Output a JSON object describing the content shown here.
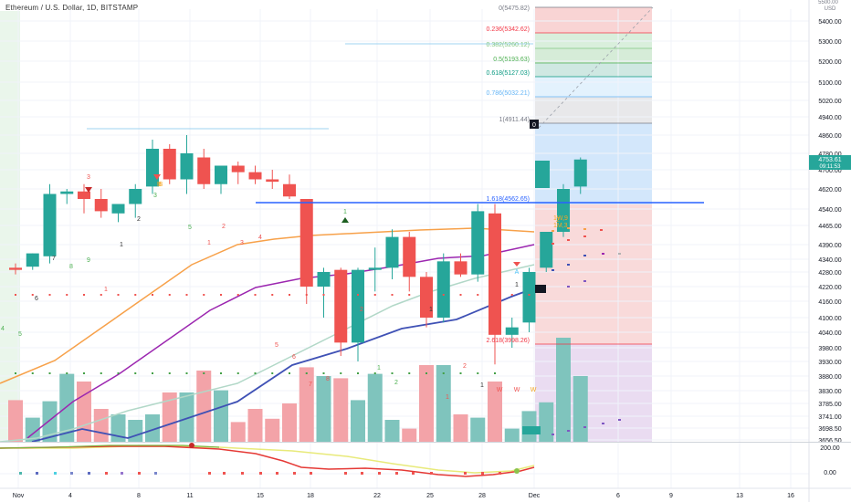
{
  "header": {
    "title": "Ethereum / U.S. Dollar, 1D, BITSTAMP"
  },
  "price_axis": {
    "currency": "USD",
    "top_label": "5500.00",
    "last_price": "4753.61",
    "countdown": "09:11:53"
  },
  "chart_data": [
    {
      "type": "candlestick",
      "title": "Ethereum / U.S. Dollar, 1D, BITSTAMP",
      "x_ticks": [
        "Nov",
        "4",
        "8",
        "11",
        "15",
        "18",
        "22",
        "25",
        "28",
        "Dec",
        "6",
        "9",
        "13",
        "16"
      ],
      "y_ticks": [
        5400,
        5300,
        5200,
        5100,
        5020,
        4940,
        4860,
        4780,
        4700,
        4620,
        4540,
        4465,
        4390,
        4340,
        4280,
        4220,
        4160,
        4100,
        4040,
        3980,
        3930,
        3880,
        3830,
        3785,
        3741,
        3698.5,
        3656.5
      ],
      "ylim": [
        3656.5,
        5510
      ],
      "candles": [
        {
          "o": 4300,
          "h": 4320,
          "l": 4270,
          "c": 4290
        },
        {
          "o": 4305,
          "h": 4360,
          "l": 4290,
          "c": 4360
        },
        {
          "o": 4350,
          "h": 4640,
          "l": 4320,
          "c": 4600
        },
        {
          "o": 4600,
          "h": 4620,
          "l": 4560,
          "c": 4610
        },
        {
          "o": 4610,
          "h": 4640,
          "l": 4520,
          "c": 4580
        },
        {
          "o": 4580,
          "h": 4620,
          "l": 4500,
          "c": 4530
        },
        {
          "o": 4520,
          "h": 4560,
          "l": 4480,
          "c": 4560
        },
        {
          "o": 4560,
          "h": 4640,
          "l": 4500,
          "c": 4620
        },
        {
          "o": 4630,
          "h": 4840,
          "l": 4600,
          "c": 4800
        },
        {
          "o": 4800,
          "h": 4820,
          "l": 4640,
          "c": 4660
        },
        {
          "o": 4660,
          "h": 4860,
          "l": 4600,
          "c": 4780
        },
        {
          "o": 4760,
          "h": 4800,
          "l": 4620,
          "c": 4640
        },
        {
          "o": 4640,
          "h": 4720,
          "l": 4600,
          "c": 4720
        },
        {
          "o": 4720,
          "h": 4740,
          "l": 4640,
          "c": 4690
        },
        {
          "o": 4690,
          "h": 4720,
          "l": 4640,
          "c": 4660
        },
        {
          "o": 4660,
          "h": 4700,
          "l": 4620,
          "c": 4650
        },
        {
          "o": 4640,
          "h": 4680,
          "l": 4580,
          "c": 4590
        },
        {
          "o": 4580,
          "h": 4580,
          "l": 4150,
          "c": 4220
        },
        {
          "o": 4220,
          "h": 4300,
          "l": 4100,
          "c": 4280
        },
        {
          "o": 4290,
          "h": 4300,
          "l": 3950,
          "c": 4000
        },
        {
          "o": 4000,
          "h": 4300,
          "l": 3930,
          "c": 4290
        },
        {
          "o": 4290,
          "h": 4380,
          "l": 4200,
          "c": 4300
        },
        {
          "o": 4300,
          "h": 4450,
          "l": 4250,
          "c": 4420
        },
        {
          "o": 4420,
          "h": 4440,
          "l": 4200,
          "c": 4260
        },
        {
          "o": 4260,
          "h": 4280,
          "l": 4060,
          "c": 4100
        },
        {
          "o": 4100,
          "h": 4360,
          "l": 4080,
          "c": 4330
        },
        {
          "o": 4330,
          "h": 4360,
          "l": 4260,
          "c": 4270
        },
        {
          "o": 4270,
          "h": 4560,
          "l": 4240,
          "c": 4530
        },
        {
          "o": 4520,
          "h": 4560,
          "l": 3920,
          "c": 4030
        },
        {
          "o": 4030,
          "h": 4100,
          "l": 3980,
          "c": 4060
        },
        {
          "o": 4080,
          "h": 4300,
          "l": 4040,
          "c": 4280
        },
        {
          "o": 4300,
          "h": 4440,
          "l": 4280,
          "c": 4440
        },
        {
          "o": 4440,
          "h": 4640,
          "l": 4420,
          "c": 4620
        },
        {
          "o": 4630,
          "h": 4760,
          "l": 4600,
          "c": 4750
        }
      ],
      "volume": [
        0.38,
        0.22,
        0.37,
        0.62,
        0.55,
        0.3,
        0.25,
        0.2,
        0.25,
        0.45,
        0.45,
        0.65,
        0.47,
        0.18,
        0.3,
        0.21,
        0.35,
        0.68,
        0.6,
        0.58,
        0.38,
        0.62,
        0.2,
        0.12,
        0.7,
        0.7,
        0.25,
        0.22,
        0.55,
        0.12,
        0.28,
        0.36,
        0.95,
        0.6
      ],
      "fibonacci_levels": [
        {
          "ratio": "0",
          "value": 5475.82,
          "label": "0(5475.82)",
          "color": "#787b86"
        },
        {
          "ratio": "0.236",
          "value": 5342.62,
          "label": "0.236(5342.62)",
          "color": "#f23645"
        },
        {
          "ratio": "0.382",
          "value": 5260.12,
          "label": "0.382(5260.12)",
          "color": "#81c784"
        },
        {
          "ratio": "0.5",
          "value": 5193.63,
          "label": "0.5(5193.63)",
          "color": "#4caf50"
        },
        {
          "ratio": "0.618",
          "value": 5127.03,
          "label": "0.618(5127.03)",
          "color": "#089981"
        },
        {
          "ratio": "0.786",
          "value": 5032.21,
          "label": "0.786(5032.21)",
          "color": "#64b5f6"
        },
        {
          "ratio": "1",
          "value": 4911.44,
          "label": "1(4911.44)",
          "color": "#787b86"
        },
        {
          "ratio": "1.618",
          "value": 4562.65,
          "label": "1.618(4562.65)",
          "color": "#2962ff"
        },
        {
          "ratio": "2.618",
          "value": 3998.26,
          "label": "2.618(3998.26)",
          "color": "#f23645"
        }
      ],
      "annotations": [
        "1W,9",
        "1M,3",
        "A",
        "B",
        "0"
      ]
    },
    {
      "type": "line",
      "title": "",
      "y_ticks": [
        "200.00",
        "0.00"
      ]
    }
  ]
}
